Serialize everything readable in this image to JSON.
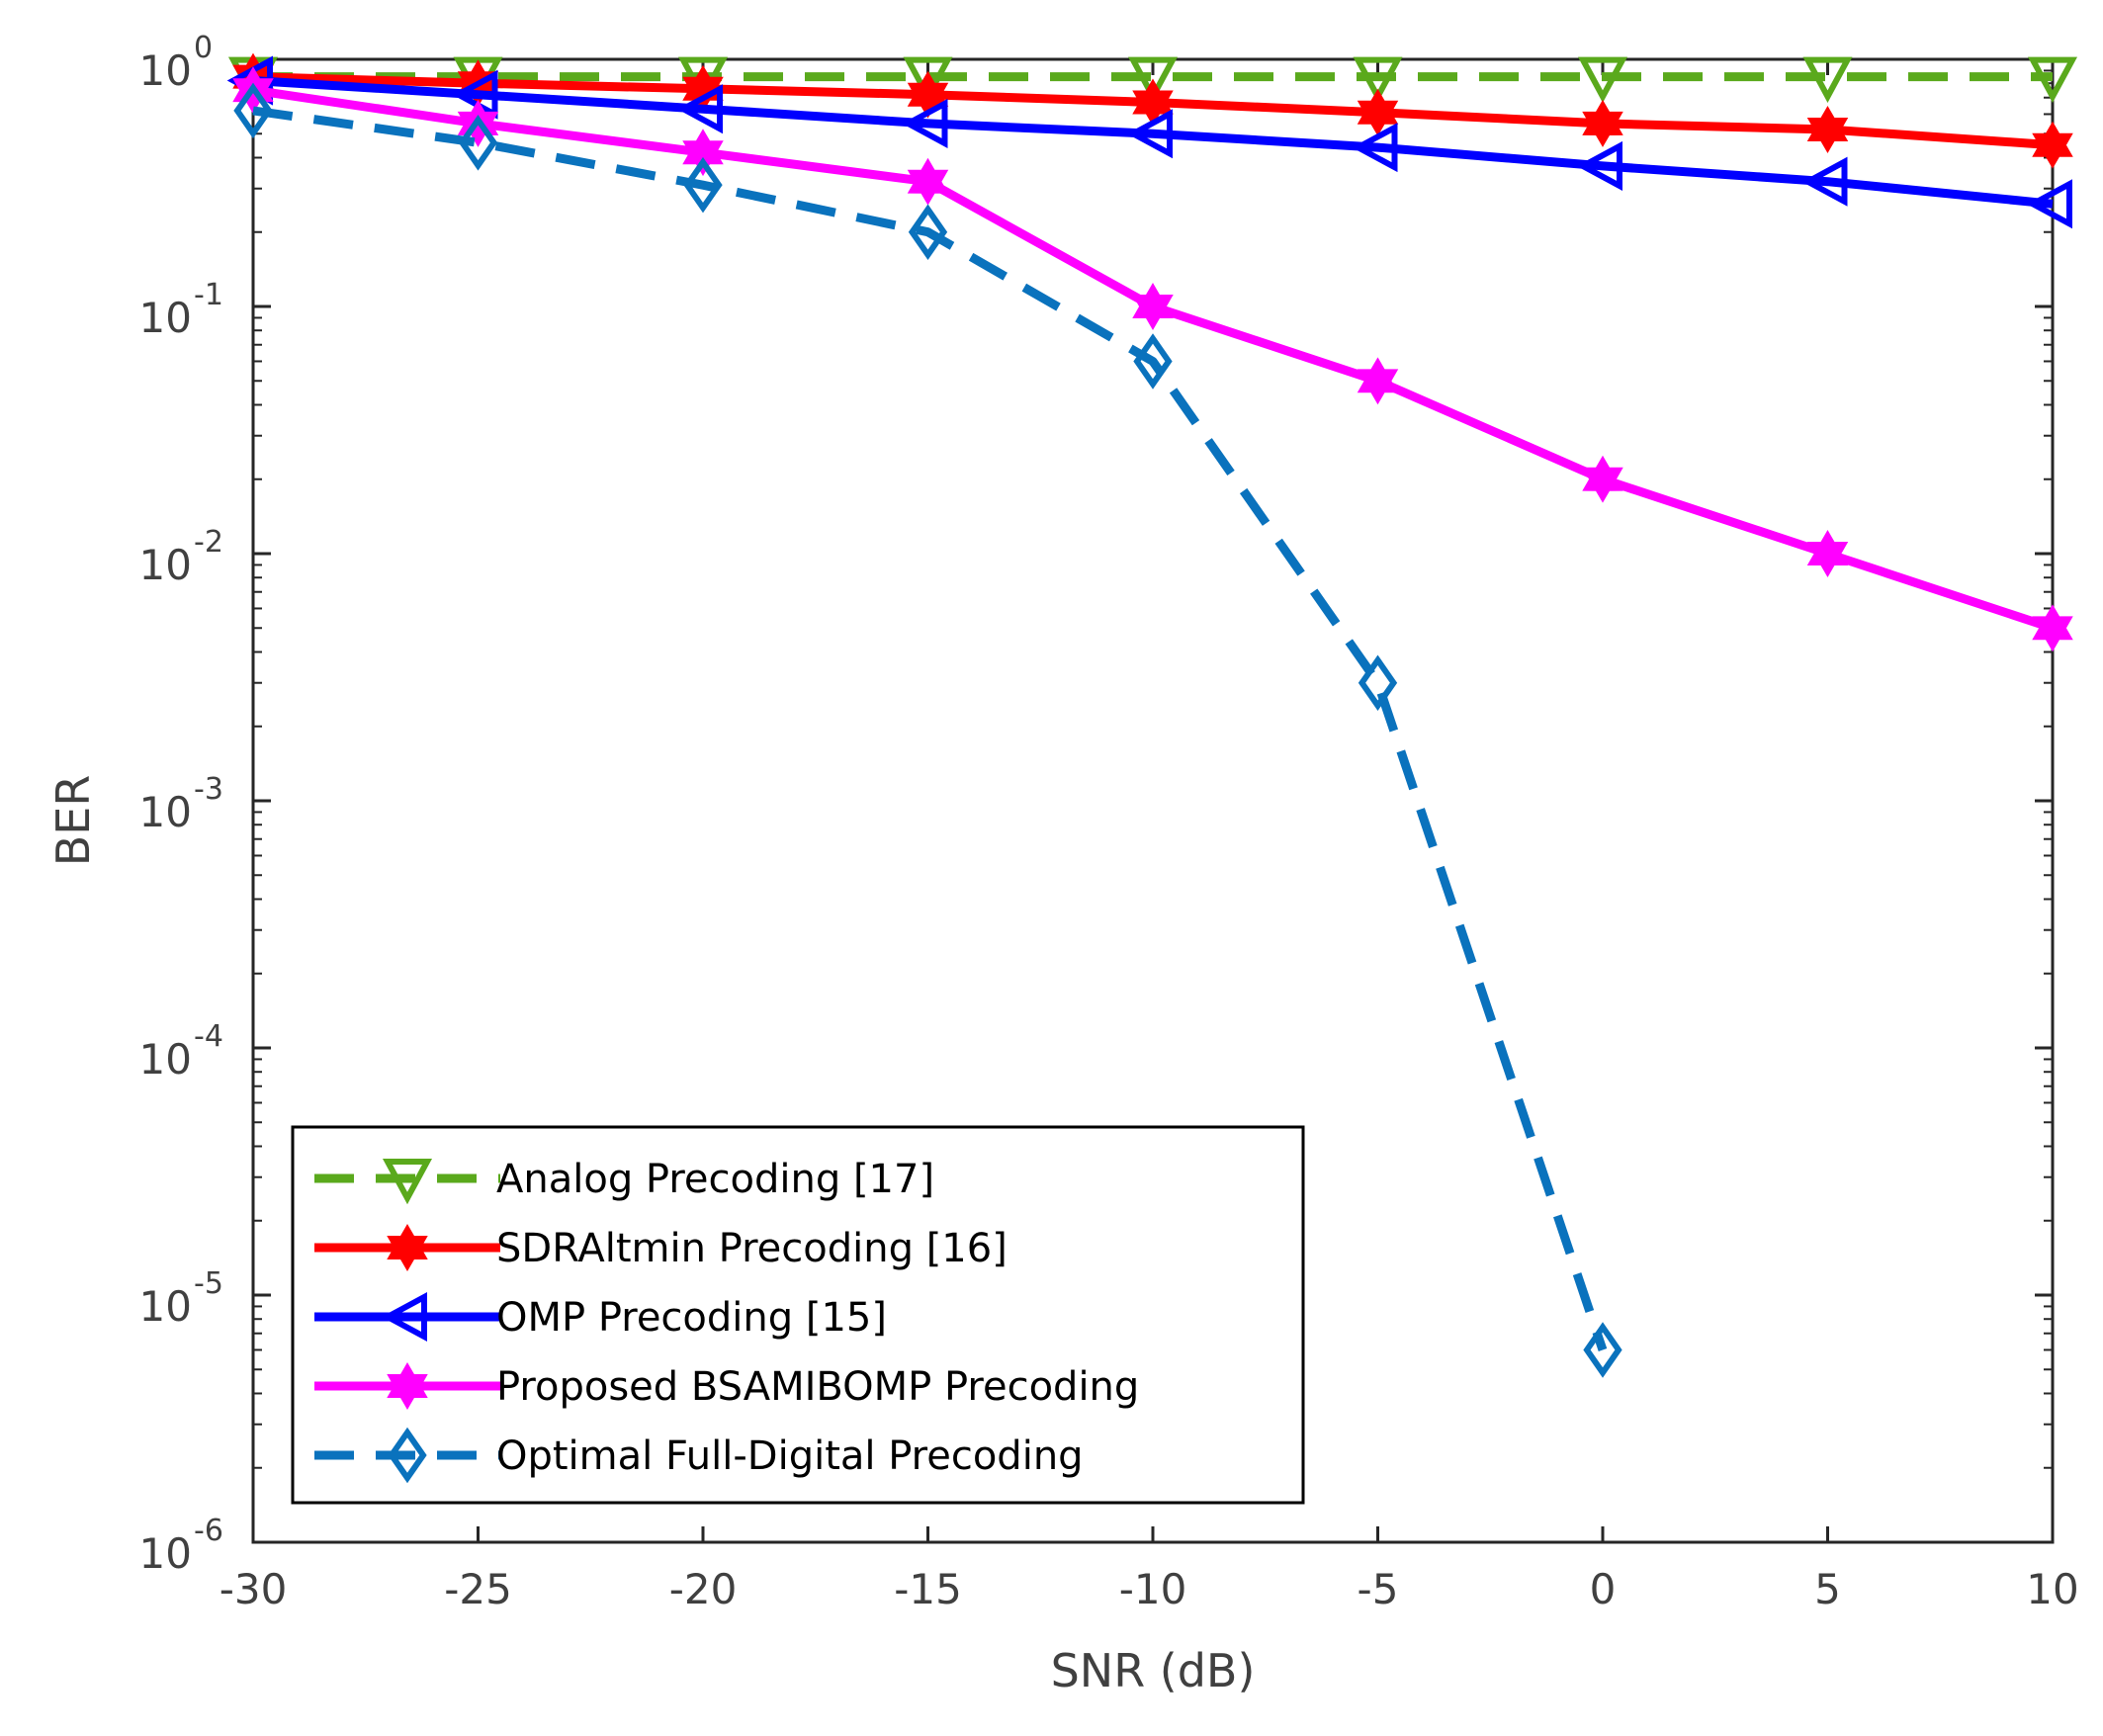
{
  "chart_data": {
    "type": "line",
    "title": "",
    "xlabel": "SNR (dB)",
    "ylabel": "BER",
    "yscale": "log",
    "xlim": [
      -30,
      10
    ],
    "ylim": [
      1e-06,
      1
    ],
    "x": [
      -30,
      -25,
      -20,
      -15,
      -10,
      -5,
      0,
      5,
      10
    ],
    "x_tick_labels": [
      "-30",
      "-25",
      "-20",
      "-15",
      "-10",
      "-5",
      "0",
      "5",
      "10"
    ],
    "y_ticks": [
      {
        "value": 1,
        "base": "10",
        "exp": "0"
      },
      {
        "value": 0.1,
        "base": "10",
        "exp": "-1"
      },
      {
        "value": 0.01,
        "base": "10",
        "exp": "-2"
      },
      {
        "value": 0.001,
        "base": "10",
        "exp": "-3"
      },
      {
        "value": 0.0001,
        "base": "10",
        "exp": "-4"
      },
      {
        "value": 1e-05,
        "base": "10",
        "exp": "-5"
      },
      {
        "value": 1e-06,
        "base": "10",
        "exp": "-6"
      }
    ],
    "grid": false,
    "legend_position": "bottom-left",
    "series": [
      {
        "name": "Analog Precoding [17]",
        "color": "#5aa91c",
        "dash": "dashed",
        "marker": "triangle-down",
        "x": [
          -30,
          -25,
          -20,
          -15,
          -10,
          -5,
          0,
          5,
          10
        ],
        "values": [
          0.85,
          0.85,
          0.85,
          0.85,
          0.85,
          0.85,
          0.85,
          0.85,
          0.85
        ]
      },
      {
        "name": "SDRAltmin Precoding [16]",
        "color": "#ff0000",
        "dash": "solid",
        "marker": "hexagram",
        "x": [
          -30,
          -25,
          -20,
          -15,
          -10,
          -5,
          0,
          5,
          10
        ],
        "values": [
          0.85,
          0.8,
          0.76,
          0.72,
          0.67,
          0.61,
          0.55,
          0.52,
          0.45
        ]
      },
      {
        "name": "OMP Precoding [15]",
        "color": "#0000ff",
        "dash": "solid",
        "marker": "triangle-left",
        "x": [
          -30,
          -25,
          -20,
          -15,
          -10,
          -5,
          0,
          5,
          10
        ],
        "values": [
          0.82,
          0.72,
          0.63,
          0.55,
          0.5,
          0.44,
          0.37,
          0.32,
          0.26
        ]
      },
      {
        "name": "Proposed BSAMIBOMP Precoding",
        "color": "#ff00ff",
        "dash": "solid",
        "marker": "hexagram",
        "x": [
          -30,
          -25,
          -20,
          -15,
          -10,
          -5,
          0,
          5,
          10
        ],
        "values": [
          0.75,
          0.55,
          0.42,
          0.32,
          0.1,
          0.05,
          0.02,
          0.01,
          0.005
        ]
      },
      {
        "name": "Optimal Full-Digital Precoding",
        "color": "#0a72bd",
        "dash": "dashed",
        "marker": "diamond",
        "x": [
          -30,
          -25,
          -20,
          -15,
          -10,
          -5,
          0
        ],
        "values": [
          0.62,
          0.46,
          0.31,
          0.2,
          0.06,
          0.003,
          6e-06
        ]
      }
    ]
  }
}
